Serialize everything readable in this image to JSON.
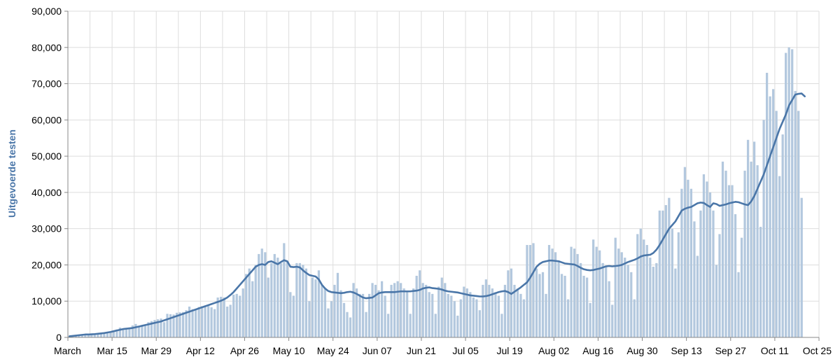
{
  "chart_data": {
    "type": "bar",
    "title": "",
    "xlabel": "",
    "ylabel": "Uitgevoerde testen",
    "ylim": [
      0,
      90000
    ],
    "y_ticks": [
      0,
      10000,
      20000,
      30000,
      40000,
      50000,
      60000,
      70000,
      80000,
      90000
    ],
    "y_tick_labels": [
      "0",
      "10,000",
      "20,000",
      "30,000",
      "40,000",
      "50,000",
      "60,000",
      "70,000",
      "80,000",
      "90,000"
    ],
    "x_tick_labels": [
      "March",
      "Mar 15",
      "Mar 29",
      "Apr 12",
      "Apr 26",
      "May 10",
      "May 24",
      "Jun 07",
      "Jun 21",
      "Jul 05",
      "Jul 19",
      "Aug 02",
      "Aug 16",
      "Aug 30",
      "Sep 13",
      "Sep 27",
      "Oct 11",
      "Oct 25"
    ],
    "x_start": "2020-03-01",
    "x_end": "2020-10-25",
    "grid": true,
    "colors": {
      "bar": "#b3c8de",
      "line": "#4a76a8",
      "axis_title": "#4a76a8",
      "grid": "#dddddd"
    },
    "series": [
      {
        "type": "bar",
        "start_date": "2020-03-01",
        "values": [
          200,
          300,
          400,
          500,
          600,
          700,
          800,
          800,
          900,
          1000,
          1100,
          1200,
          1300,
          1500,
          1700,
          2200,
          2700,
          2500,
          2300,
          2600,
          3300,
          3700,
          3200,
          3200,
          3500,
          4200,
          4500,
          4800,
          5000,
          5200,
          4200,
          6500,
          6400,
          6300,
          6800,
          6900,
          7000,
          7500,
          8500,
          7800,
          7800,
          8400,
          8600,
          8800,
          9000,
          8300,
          7800,
          11000,
          11200,
          11000,
          8500,
          9000,
          11800,
          12000,
          11500,
          13500,
          17500,
          19000,
          15500,
          20000,
          23000,
          24500,
          23500,
          16500,
          20500,
          23000,
          22000,
          20500,
          26000,
          21000,
          12500,
          11500,
          20500,
          20500,
          20000,
          19000,
          10000,
          16500,
          16000,
          18500,
          14500,
          13500,
          8000,
          10000,
          14500,
          17800,
          13000,
          9500,
          7000,
          5500,
          15000,
          13500,
          12000,
          12000,
          7000,
          12000,
          15000,
          14500,
          13000,
          15500,
          11500,
          6500,
          14500,
          15000,
          15500,
          15000,
          13500,
          12500,
          6500,
          13500,
          17000,
          18500,
          15000,
          14500,
          12500,
          12000,
          6500,
          14000,
          16500,
          15000,
          12000,
          11500,
          10000,
          6000,
          10500,
          14000,
          13500,
          12500,
          11000,
          10500,
          7500,
          14500,
          16000,
          14500,
          13500,
          12500,
          11500,
          6500,
          14500,
          18500,
          19000,
          14500,
          13500,
          12000,
          10500,
          25500,
          25500,
          26000,
          19000,
          17500,
          18000,
          12000,
          25500,
          24500,
          23500,
          21000,
          17500,
          17000,
          10500,
          25000,
          24500,
          23000,
          20500,
          17000,
          16500,
          9500,
          27000,
          25000,
          24000,
          20500,
          19500,
          15500,
          9000,
          27500,
          24500,
          23500,
          22000,
          20000,
          18000,
          10500,
          28500,
          30000,
          27000,
          25500,
          22000,
          19500,
          20500,
          35000,
          35000,
          36500,
          38500,
          30000,
          19000,
          29000,
          41000,
          47000,
          43500,
          41000,
          32000,
          22500,
          35000,
          45000,
          43000,
          40000,
          35000,
          20000,
          28500,
          48500,
          46000,
          42000,
          42000,
          34000,
          18000,
          27500,
          46000,
          54500,
          48500,
          54000,
          47500,
          30500,
          60000,
          73000,
          66500,
          68500,
          62500,
          44500,
          56000,
          78500,
          80000,
          79500,
          68000,
          62500,
          38500
        ]
      },
      {
        "type": "line",
        "start_date": "2020-03-01",
        "values": [
          300,
          400,
          500,
          600,
          700,
          800,
          800,
          850,
          900,
          1000,
          1100,
          1200,
          1350,
          1500,
          1700,
          1900,
          2100,
          2300,
          2400,
          2500,
          2600,
          2800,
          3000,
          3200,
          3400,
          3600,
          3800,
          4000,
          4200,
          4400,
          4700,
          5000,
          5300,
          5600,
          5900,
          6200,
          6500,
          6800,
          7100,
          7400,
          7700,
          8000,
          8300,
          8600,
          8900,
          9200,
          9500,
          9800,
          10100,
          10500,
          11000,
          11700,
          12500,
          13500,
          14500,
          15500,
          16500,
          17500,
          18500,
          19500,
          20000,
          20200,
          20000,
          20800,
          21000,
          20600,
          20200,
          20800,
          21300,
          21000,
          19500,
          19400,
          19500,
          19300,
          18500,
          17800,
          17200,
          17000,
          16800,
          16000,
          14500,
          13500,
          12800,
          12500,
          12400,
          12300,
          12200,
          12300,
          12500,
          12600,
          12400,
          12000,
          11500,
          11000,
          10800,
          10900,
          11000,
          11600,
          12200,
          12400,
          12500,
          12500,
          12500,
          12500,
          12600,
          12700,
          12700,
          12700,
          12700,
          12800,
          12900,
          13100,
          13500,
          13700,
          13800,
          13600,
          13500,
          13400,
          13200,
          12900,
          12700,
          12600,
          12500,
          12400,
          12200,
          12000,
          11800,
          11600,
          11500,
          11400,
          11300,
          11300,
          11400,
          11600,
          11900,
          12200,
          12500,
          12700,
          12800,
          12500,
          12000,
          12600,
          13200,
          13800,
          14500,
          15200,
          16500,
          18000,
          19500,
          20300,
          20800,
          21000,
          21200,
          21200,
          21100,
          21000,
          20700,
          20400,
          20300,
          20200,
          20100,
          19700,
          19200,
          18800,
          18600,
          18500,
          18600,
          18800,
          19000,
          19300,
          19600,
          19700,
          19600,
          19700,
          19800,
          20000,
          20400,
          20800,
          21100,
          21400,
          21800,
          22300,
          22600,
          22700,
          22800,
          23300,
          24200,
          25500,
          27000,
          28500,
          30000,
          31000,
          32000,
          33500,
          35000,
          35500,
          35800,
          36000,
          36500,
          37000,
          37200,
          37100,
          36500,
          36000,
          37000,
          36800,
          36300,
          36500,
          36700,
          37000,
          37200,
          37400,
          37300,
          37000,
          36700,
          36500,
          37500,
          39000,
          41000,
          43000,
          45000,
          47500,
          50000,
          52500,
          55000,
          57500,
          59500,
          61500,
          64000,
          65500,
          67000,
          67200,
          67300,
          66500
        ]
      }
    ]
  }
}
